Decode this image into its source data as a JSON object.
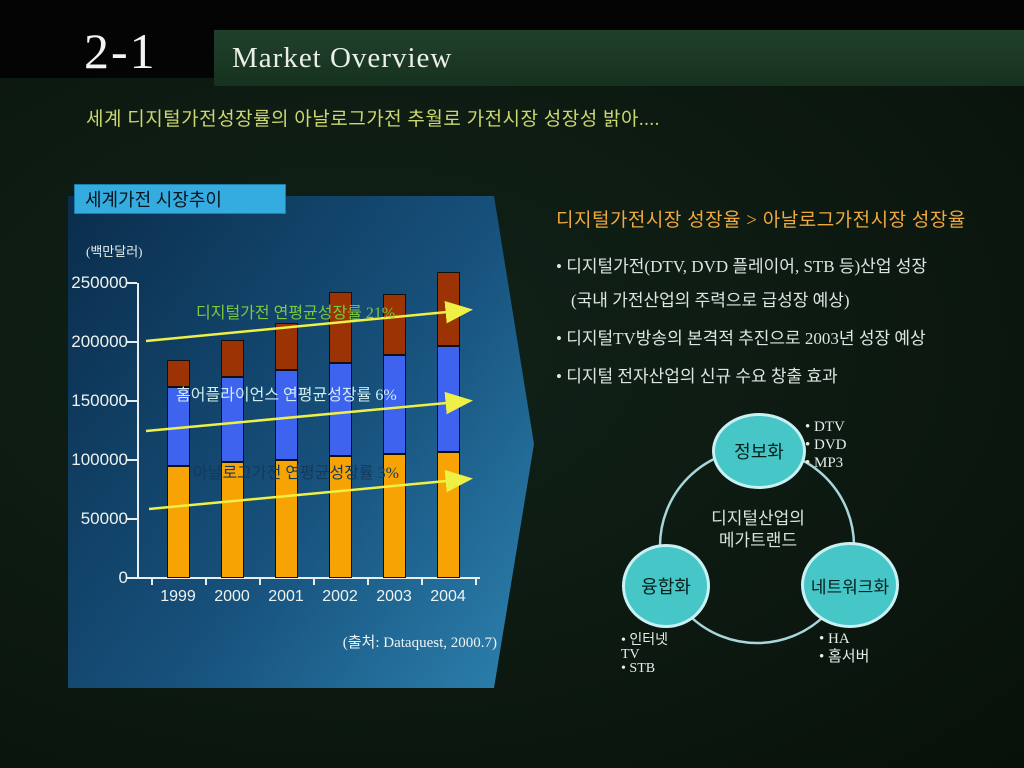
{
  "slide": {
    "page_number": "2-1",
    "header_title": "Market Overview",
    "subtitle": "세계 디지털가전성장률의 아날로그가전 추월로 가전시장 성장성 밝아...."
  },
  "colors": {
    "header_bar": "#1c3a26",
    "subtitle": "#ccd76e",
    "chart_title_box": "#35ace0",
    "panel_top": "#0a2d4c",
    "panel_bottom": "#2d82b0",
    "arrow_yellow": "#eef046",
    "heading_orange": "#efa93e",
    "circle_fill": "#47c6c8"
  },
  "chart_data": {
    "type": "bar",
    "stacked": true,
    "title": "세계가전 시장추이",
    "unit_label": "(백만달러)",
    "categories": [
      "1999",
      "2000",
      "2001",
      "2002",
      "2003",
      "2004"
    ],
    "series": [
      {
        "name": "아날로그가전",
        "color": "#f7a303",
        "values": [
          95000,
          98000,
          100000,
          103000,
          105000,
          107000
        ]
      },
      {
        "name": "홈어플라이언스",
        "color": "#3e63ee",
        "values": [
          67000,
          72000,
          76000,
          79000,
          84000,
          90000
        ]
      },
      {
        "name": "디지털가전",
        "color": "#9b3304",
        "values": [
          23000,
          32000,
          40000,
          60000,
          52000,
          62000
        ]
      }
    ],
    "ylim": [
      0,
      250000
    ],
    "yticks": [
      0,
      50000,
      100000,
      150000,
      200000,
      250000
    ],
    "grid": false,
    "legend": "none",
    "annotations": [
      {
        "text": "디지털가전 연평균성장률 21%",
        "color": "#7cc83e"
      },
      {
        "text": "홈어플라이언스 연평균성장률 6%",
        "color": "#cfeef0"
      },
      {
        "text": "아날로그가전 연평균성장률 3%",
        "color": "#123a5c"
      }
    ],
    "source": "(출처: Dataquest, 2000.7)"
  },
  "right_panel": {
    "heading": "디지털가전시장 성장율 > 아날로그가전시장 성장율",
    "bullet_char": "•",
    "bullets": [
      {
        "lines": [
          "디지털가전(DTV, DVD 플레이어, STB 등)산업 성장",
          "(국내 가전산업의 주력으로 급성장 예상)"
        ]
      },
      {
        "lines": [
          "디지털TV방송의 본격적 추진으로 2003년 성장 예상"
        ]
      },
      {
        "lines": [
          "디지털 전자산업의 신규 수요 창출 효과"
        ]
      }
    ]
  },
  "diagram": {
    "center": {
      "line1": "디지털산업의",
      "line2": "메가트랜드"
    },
    "nodes": [
      {
        "id": "info",
        "label": "정보화",
        "items": [
          "• DTV",
          "• DVD",
          "• MP3"
        ]
      },
      {
        "id": "fusion",
        "label": "융합화",
        "items": [
          "• 인터넷",
          "TV",
          "• STB"
        ]
      },
      {
        "id": "network",
        "label": "네트워크화",
        "items": [
          "• HA",
          "• 홈서버"
        ]
      }
    ]
  }
}
